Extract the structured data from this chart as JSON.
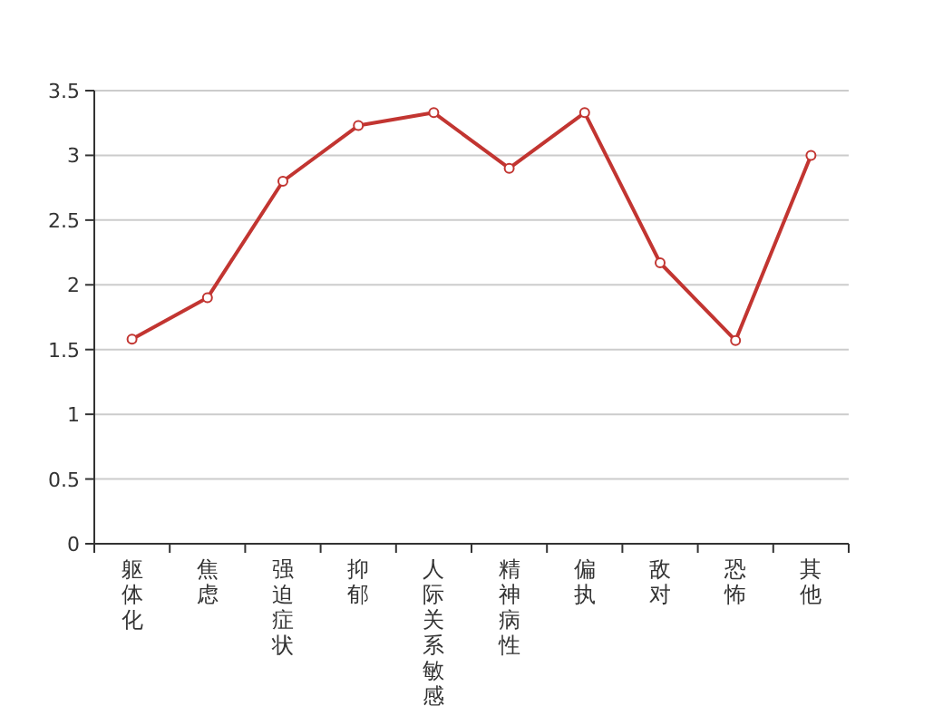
{
  "chart_data": {
    "type": "line",
    "categories": [
      "躯体化",
      "焦虑",
      "强迫症状",
      "抑郁",
      "人际关系敏感",
      "精神病性",
      "偏执",
      "敌对",
      "恐怖",
      "其他"
    ],
    "series": [
      {
        "color": "#c23531",
        "values": [
          1.58,
          1.9,
          2.8,
          3.23,
          3.33,
          2.9,
          3.33,
          2.17,
          1.57,
          3.0
        ]
      }
    ],
    "ylim": [
      0,
      3.5
    ],
    "yticks": [
      0,
      0.5,
      1,
      1.5,
      2,
      2.5,
      3,
      3.5
    ],
    "grid": "y",
    "marker": "circle",
    "line_style": "solid"
  }
}
